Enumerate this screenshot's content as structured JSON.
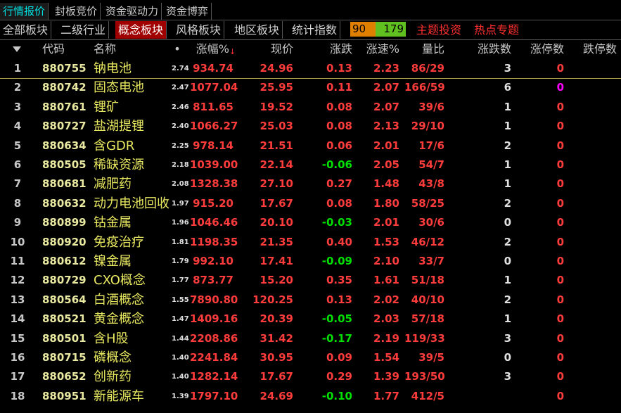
{
  "top_tabs": [
    "行情报价",
    "封板竞价",
    "资金驱动力",
    "资金博弈"
  ],
  "sub_tabs": [
    "全部板块",
    "二级行业",
    "概念板块",
    "风格板块",
    "地区板块",
    "统计指数"
  ],
  "counter": {
    "up": "90",
    "down": "179"
  },
  "links": [
    "主题投资",
    "热点专题"
  ],
  "table": {
    "headers": [
      "代码",
      "名称",
      "•",
      "涨幅%",
      "现价",
      "涨跌",
      "涨速%",
      "量比",
      "涨跌数",
      "涨停数",
      "跌停数"
    ],
    "rows": [
      [
        "1",
        "880755",
        "钠电池",
        "2.74",
        "934.74",
        "24.96",
        "0.13",
        "2.23",
        "86/29",
        "3",
        "0"
      ],
      [
        "2",
        "880742",
        "固态电池",
        "2.47",
        "1077.04",
        "25.95",
        "0.11",
        "2.07",
        "166/59",
        "6",
        "0"
      ],
      [
        "3",
        "880761",
        "锂矿",
        "2.46",
        "811.65",
        "19.52",
        "0.08",
        "2.07",
        "39/6",
        "1",
        "0"
      ],
      [
        "4",
        "880727",
        "盐湖提锂",
        "2.40",
        "1066.27",
        "25.03",
        "0.08",
        "2.13",
        "29/10",
        "1",
        "0"
      ],
      [
        "5",
        "880634",
        "含GDR",
        "2.25",
        "978.14",
        "21.51",
        "0.06",
        "2.01",
        "17/6",
        "2",
        "0"
      ],
      [
        "6",
        "880505",
        "稀缺资源",
        "2.18",
        "1039.00",
        "22.14",
        "-0.06",
        "2.05",
        "54/7",
        "1",
        "0"
      ],
      [
        "7",
        "880681",
        "减肥药",
        "2.08",
        "1328.38",
        "27.10",
        "0.27",
        "1.48",
        "43/8",
        "1",
        "0"
      ],
      [
        "8",
        "880632",
        "动力电池回收",
        "1.97",
        "915.20",
        "17.67",
        "0.08",
        "1.80",
        "58/25",
        "2",
        "0"
      ],
      [
        "9",
        "880899",
        "钴金属",
        "1.96",
        "1046.46",
        "20.10",
        "-0.03",
        "2.01",
        "30/6",
        "0",
        "0"
      ],
      [
        "10",
        "880920",
        "免疫治疗",
        "1.81",
        "1198.35",
        "21.35",
        "0.40",
        "1.53",
        "46/12",
        "2",
        "0"
      ],
      [
        "11",
        "880612",
        "镍金属",
        "1.79",
        "992.10",
        "17.41",
        "-0.09",
        "2.10",
        "33/7",
        "0",
        "0"
      ],
      [
        "12",
        "880729",
        "CXO概念",
        "1.77",
        "873.77",
        "15.20",
        "0.35",
        "1.61",
        "51/18",
        "1",
        "0"
      ],
      [
        "13",
        "880564",
        "白酒概念",
        "1.55",
        "7890.80",
        "120.25",
        "0.13",
        "2.02",
        "40/10",
        "2",
        "0"
      ],
      [
        "14",
        "880521",
        "黄金概念",
        "1.47",
        "1409.16",
        "20.39",
        "-0.05",
        "2.03",
        "57/18",
        "1",
        "0"
      ],
      [
        "15",
        "880501",
        "含H股",
        "1.44",
        "2208.86",
        "31.42",
        "-0.17",
        "2.19",
        "119/33",
        "3",
        "0"
      ],
      [
        "16",
        "880715",
        "磷概念",
        "1.40",
        "2241.84",
        "30.95",
        "0.09",
        "1.54",
        "39/5",
        "0",
        "0"
      ],
      [
        "17",
        "880652",
        "创新药",
        "1.40",
        "1282.14",
        "17.67",
        "0.29",
        "1.39",
        "193/50",
        "3",
        "0"
      ],
      [
        "18",
        "880951",
        "新能源车",
        "1.39",
        "1797.10",
        "24.69",
        "-0.10",
        "1.77",
        "412/5",
        null,
        "0"
      ]
    ]
  }
}
